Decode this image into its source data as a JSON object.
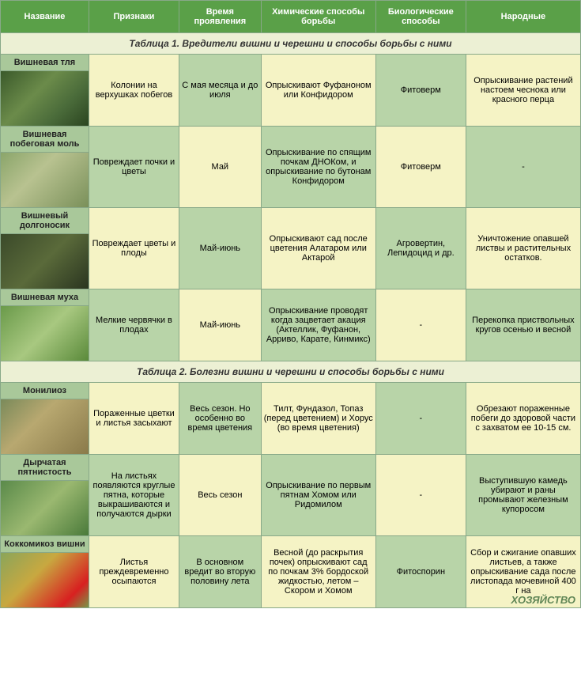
{
  "headers": [
    "Название",
    "Признаки",
    "Время проявления",
    "Химические способы борьбы",
    "Биологические способы",
    "Народные"
  ],
  "section1": {
    "title": "Таблица 1. Вредители вишни и черешни и способы борьбы с ними",
    "rows": [
      {
        "name": "Вишневая тля",
        "signs": "Колонии на верхушках побегов",
        "time": "С мая месяца и до июля",
        "chem": "Опрыскивают Фуфаноном или Конфидором",
        "bio": "Фитоверм",
        "folk": "Опрыскивание растений настоем чеснока или красного перца"
      },
      {
        "name": "Вишневая побеговая моль",
        "signs": "Повреждает почки и цветы",
        "time": "Май",
        "chem": "Опрыскивание по спящим почкам ДНОКом, и опрыскивание по бутонам Конфидором",
        "bio": "Фитоверм",
        "folk": "-"
      },
      {
        "name": "Вишневый долгоносик",
        "signs": "Повреждает цветы и плоды",
        "time": "Май-июнь",
        "chem": "Опрыскивают сад после цветения Алатаром или Актарой",
        "bio": "Агровертин, Лепидоцид и др.",
        "folk": "Уничтожение опавшей листвы и растительных остатков."
      },
      {
        "name": "Вишневая муха",
        "signs": "Мелкие червячки в плодах",
        "time": "Май-июнь",
        "chem": "Опрыскивание проводят когда зацветает акация (Актеллик, Фуфанон, Арриво, Карате, Кинмикс)",
        "bio": "-",
        "folk": "Перекопка приствольных кругов осенью и весной"
      }
    ]
  },
  "section2": {
    "title": "Таблица 2. Болезни вишни и черешни и способы борьбы с ними",
    "rows": [
      {
        "name": "Монилиоз",
        "signs": "Пораженные цветки и листья засыхают",
        "time": "Весь сезон. Но особенно во время цветения",
        "chem": "Тилт, Фундазол, Топаз (перед цветением) и Хорус (во время цветения)",
        "bio": "-",
        "folk": "Обрезают пораженные побеги до здоровой части с захватом ее 10-15 см."
      },
      {
        "name": "Дырчатая пятнистость",
        "signs": "На листьях появляются круглые пятна, которые выкрашиваются и получаются дырки",
        "time": "Весь сезон",
        "chem": "Опрыскивание по первым пятнам Хомом или Ридомилом",
        "bio": "-",
        "folk": "Выступившую камедь убирают и раны промывают железным купоросом"
      },
      {
        "name": "Коккомикоз вишни",
        "signs": "Листья преждевременно осыпаются",
        "time": "В основном вредит во вторую половину лета",
        "chem": "Весной (до раскрытия почек) опрыскивают сад по почкам 3% бордоской жидкостью, летом – Скором и Хомом",
        "bio": "Фитоспорин",
        "folk": "Сбор и сжигание опавших листьев, а также опрыскивание сада после листопада мочевиной 400 г на"
      }
    ]
  },
  "watermark": "ХОЗЯЙСТВО"
}
